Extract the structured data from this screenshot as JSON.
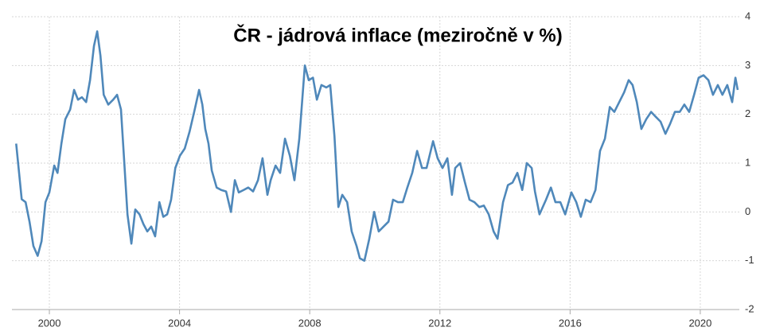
{
  "chart_data": {
    "type": "line",
    "title": "ČR - jádrová inflace (meziročně v %)",
    "x": [
      1998.98,
      1999.15,
      1999.27,
      1999.39,
      1999.51,
      1999.64,
      1999.76,
      1999.88,
      2000.0,
      2000.15,
      2000.25,
      2000.37,
      2000.49,
      2000.64,
      2000.76,
      2000.88,
      2001.0,
      2001.13,
      2001.25,
      2001.37,
      2001.47,
      2001.57,
      2001.67,
      2001.81,
      2001.96,
      2002.08,
      2002.2,
      2002.28,
      2002.4,
      2002.52,
      2002.64,
      2002.77,
      2002.89,
      2003.01,
      2003.13,
      2003.25,
      2003.38,
      2003.5,
      2003.62,
      2003.74,
      2003.87,
      2004.01,
      2004.16,
      2004.31,
      2004.45,
      2004.6,
      2004.7,
      2004.79,
      2004.89,
      2004.99,
      2005.14,
      2005.28,
      2005.43,
      2005.58,
      2005.7,
      2005.82,
      2005.97,
      2006.11,
      2006.26,
      2006.41,
      2006.55,
      2006.7,
      2006.8,
      2006.95,
      2007.09,
      2007.24,
      2007.39,
      2007.53,
      2007.68,
      2007.85,
      2007.97,
      2008.1,
      2008.22,
      2008.36,
      2008.51,
      2008.63,
      2008.76,
      2008.88,
      2009.0,
      2009.15,
      2009.29,
      2009.44,
      2009.54,
      2009.68,
      2009.83,
      2009.98,
      2010.12,
      2010.27,
      2010.42,
      2010.56,
      2010.71,
      2010.86,
      2011.0,
      2011.15,
      2011.3,
      2011.45,
      2011.59,
      2011.79,
      2011.93,
      2012.08,
      2012.23,
      2012.37,
      2012.47,
      2012.62,
      2012.77,
      2012.91,
      2013.06,
      2013.21,
      2013.35,
      2013.5,
      2013.65,
      2013.77,
      2013.94,
      2014.09,
      2014.23,
      2014.38,
      2014.53,
      2014.67,
      2014.82,
      2014.92,
      2015.06,
      2015.26,
      2015.41,
      2015.55,
      2015.7,
      2015.85,
      2016.04,
      2016.19,
      2016.33,
      2016.48,
      2016.63,
      2016.78,
      2016.92,
      2017.07,
      2017.22,
      2017.36,
      2017.51,
      2017.66,
      2017.8,
      2017.92,
      2018.05,
      2018.19,
      2018.34,
      2018.49,
      2018.63,
      2018.78,
      2018.93,
      2019.07,
      2019.22,
      2019.37,
      2019.51,
      2019.66,
      2019.81,
      2019.95,
      2020.1,
      2020.25,
      2020.39,
      2020.54,
      2020.68,
      2020.83,
      2020.98,
      2021.08,
      2021.15
    ],
    "series": [
      {
        "color": "#4f88ba",
        "values": [
          1.4,
          0.26,
          0.2,
          -0.2,
          -0.7,
          -0.9,
          -0.6,
          0.2,
          0.4,
          0.95,
          0.8,
          1.4,
          1.9,
          2.1,
          2.5,
          2.3,
          2.35,
          2.25,
          2.7,
          3.4,
          3.7,
          3.2,
          2.4,
          2.2,
          2.3,
          2.4,
          2.1,
          1.25,
          -0.05,
          -0.65,
          0.05,
          -0.05,
          -0.25,
          -0.4,
          -0.3,
          -0.5,
          0.2,
          -0.1,
          -0.05,
          0.25,
          0.9,
          1.15,
          1.3,
          1.65,
          2.05,
          2.5,
          2.2,
          1.7,
          1.4,
          0.85,
          0.5,
          0.45,
          0.42,
          0.0,
          0.65,
          0.4,
          0.45,
          0.5,
          0.42,
          0.65,
          1.1,
          0.35,
          0.65,
          0.95,
          0.8,
          1.5,
          1.15,
          0.65,
          1.5,
          3.0,
          2.7,
          2.75,
          2.3,
          2.6,
          2.55,
          2.6,
          1.55,
          0.1,
          0.35,
          0.2,
          -0.4,
          -0.7,
          -0.95,
          -1.0,
          -0.55,
          0.0,
          -0.4,
          -0.3,
          -0.2,
          0.25,
          0.2,
          0.2,
          0.5,
          0.8,
          1.25,
          0.9,
          0.9,
          1.45,
          1.1,
          0.9,
          1.1,
          0.35,
          0.9,
          1.0,
          0.6,
          0.25,
          0.2,
          0.1,
          0.13,
          -0.05,
          -0.4,
          -0.55,
          0.2,
          0.55,
          0.6,
          0.8,
          0.45,
          1.0,
          0.9,
          0.42,
          -0.05,
          0.25,
          0.5,
          0.2,
          0.2,
          -0.05,
          0.4,
          0.2,
          -0.1,
          0.25,
          0.2,
          0.45,
          1.25,
          1.5,
          2.15,
          2.05,
          2.25,
          2.45,
          2.7,
          2.6,
          2.25,
          1.7,
          1.9,
          2.05,
          1.95,
          1.85,
          1.6,
          1.8,
          2.05,
          2.05,
          2.2,
          2.05,
          2.4,
          2.75,
          2.8,
          2.7,
          2.4,
          2.6,
          2.4,
          2.6,
          2.25,
          2.75,
          2.5
        ]
      }
    ],
    "xlim": [
      1998.85,
      2021.2
    ],
    "xticks": [
      2000,
      2004,
      2008,
      2012,
      2016,
      2020
    ],
    "ylim": [
      -2,
      4
    ],
    "yticks": [
      -2,
      -1,
      0,
      1,
      2,
      3,
      4
    ],
    "grid": true
  }
}
